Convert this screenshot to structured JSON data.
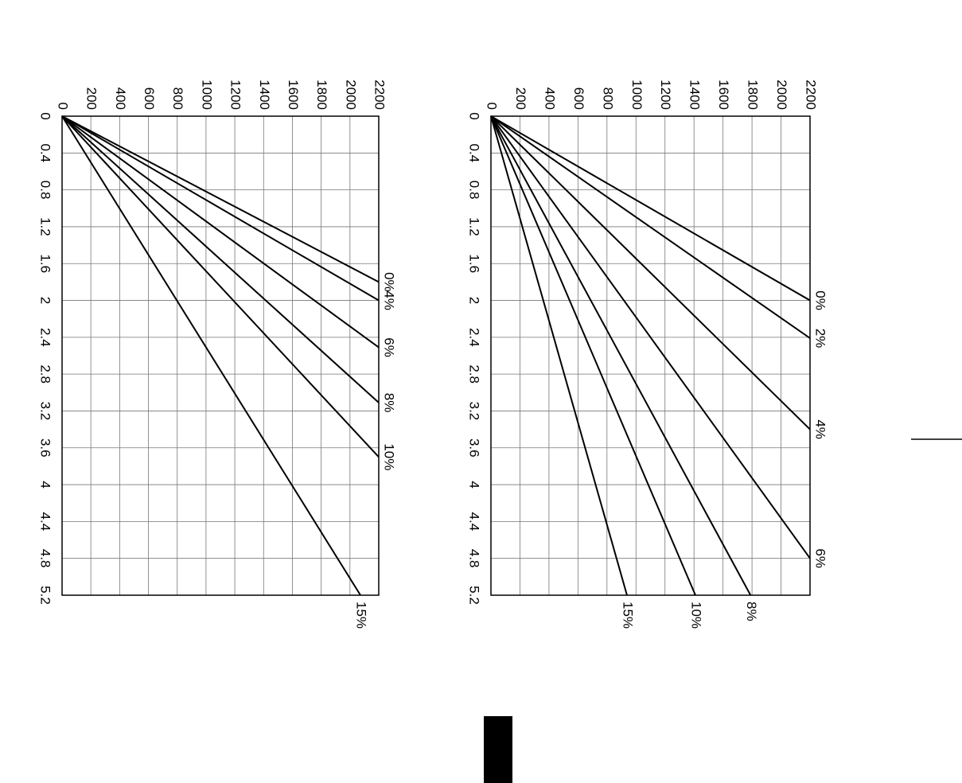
{
  "chart_data": [
    {
      "type": "line",
      "color": "#000000",
      "grid": true,
      "xlim": [
        0,
        5.2
      ],
      "xticks": [
        0,
        0.4,
        0.8,
        1.2,
        1.6,
        2,
        2.4,
        2.8,
        3.2,
        3.6,
        4,
        4.4,
        4.8,
        5.2
      ],
      "ylim": [
        0,
        2200
      ],
      "yticks": [
        0,
        200,
        400,
        600,
        800,
        1000,
        1200,
        1400,
        1600,
        1800,
        2000,
        2200
      ],
      "series": [
        {
          "name": "0%",
          "x": [
            0,
            1.8
          ],
          "values": [
            0,
            2200
          ]
        },
        {
          "name": "4%",
          "x": [
            0,
            2.0
          ],
          "values": [
            0,
            2200
          ]
        },
        {
          "name": "6%",
          "x": [
            0,
            2.51
          ],
          "values": [
            0,
            2200
          ]
        },
        {
          "name": "8%",
          "x": [
            0,
            3.11
          ],
          "values": [
            0,
            2200
          ]
        },
        {
          "name": "10%",
          "x": [
            0,
            3.7
          ],
          "values": [
            0,
            2200
          ]
        },
        {
          "name": "15%",
          "x": [
            0,
            5.2
          ],
          "values": [
            0,
            2073
          ]
        }
      ]
    },
    {
      "type": "line",
      "color": "#000000",
      "grid": true,
      "xlim": [
        0,
        5.2
      ],
      "xticks": [
        0,
        0.4,
        0.8,
        1.2,
        1.6,
        2,
        2.4,
        2.8,
        3.2,
        3.6,
        4,
        4.4,
        4.8,
        5.2
      ],
      "ylim": [
        0,
        2200
      ],
      "yticks": [
        0,
        200,
        400,
        600,
        800,
        1000,
        1200,
        1400,
        1600,
        1800,
        2000,
        2200
      ],
      "series": [
        {
          "name": "0%",
          "x": [
            0,
            2.0
          ],
          "values": [
            0,
            2200
          ]
        },
        {
          "name": "2%",
          "x": [
            0,
            2.41
          ],
          "values": [
            0,
            2200
          ]
        },
        {
          "name": "4%",
          "x": [
            0,
            3.4
          ],
          "values": [
            0,
            2200
          ]
        },
        {
          "name": "6%",
          "x": [
            0,
            4.8
          ],
          "values": [
            0,
            2200
          ]
        },
        {
          "name": "8%",
          "x": [
            0,
            5.2
          ],
          "values": [
            0,
            1790
          ]
        },
        {
          "name": "10%",
          "x": [
            0,
            5.2
          ],
          "values": [
            0,
            1410
          ]
        },
        {
          "name": "15%",
          "x": [
            0,
            5.2
          ],
          "values": [
            0,
            938
          ]
        }
      ]
    }
  ]
}
